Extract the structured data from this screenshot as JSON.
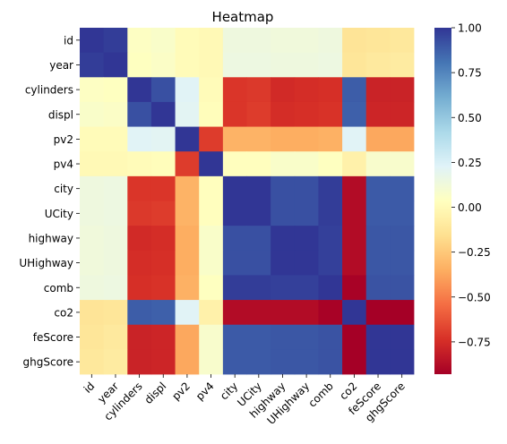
{
  "chart_data": {
    "type": "heatmap",
    "title": "Heatmap",
    "xlabel": "",
    "ylabel": "",
    "x_labels": [
      "id",
      "year",
      "cylinders",
      "displ",
      "pv2",
      "pv4",
      "city",
      "UCity",
      "highway",
      "UHighway",
      "comb",
      "co2",
      "feScore",
      "ghgScore"
    ],
    "y_labels": [
      "id",
      "year",
      "cylinders",
      "displ",
      "pv2",
      "pv4",
      "city",
      "UCity",
      "highway",
      "UHighway",
      "comb",
      "co2",
      "feScore",
      "ghgScore"
    ],
    "values": [
      [
        1.0,
        0.98,
        0.05,
        0.07,
        0.01,
        0.0,
        0.14,
        0.14,
        0.13,
        0.13,
        0.14,
        -0.13,
        -0.12,
        -0.11
      ],
      [
        0.98,
        1.0,
        0.04,
        0.06,
        0.01,
        0.0,
        0.15,
        0.15,
        0.14,
        0.14,
        0.15,
        -0.12,
        -0.1,
        -0.09
      ],
      [
        0.05,
        0.04,
        1.0,
        0.92,
        0.22,
        0.01,
        -0.72,
        -0.71,
        -0.76,
        -0.75,
        -0.74,
        0.88,
        -0.79,
        -0.79
      ],
      [
        0.07,
        0.06,
        0.92,
        1.0,
        0.21,
        0.02,
        -0.72,
        -0.7,
        -0.75,
        -0.74,
        -0.73,
        0.87,
        -0.78,
        -0.78
      ],
      [
        0.01,
        0.01,
        0.22,
        0.21,
        1.0,
        -0.7,
        -0.33,
        -0.33,
        -0.35,
        -0.35,
        -0.34,
        0.22,
        -0.37,
        -0.37
      ],
      [
        0.0,
        0.0,
        0.01,
        0.02,
        -0.7,
        1.0,
        0.03,
        0.03,
        0.07,
        0.07,
        0.04,
        -0.05,
        0.08,
        0.08
      ],
      [
        0.14,
        0.15,
        -0.72,
        -0.72,
        -0.33,
        0.03,
        1.0,
        1.0,
        0.92,
        0.92,
        0.98,
        -0.88,
        0.89,
        0.89
      ],
      [
        0.14,
        0.15,
        -0.71,
        -0.7,
        -0.33,
        0.03,
        1.0,
        1.0,
        0.92,
        0.92,
        0.98,
        -0.88,
        0.89,
        0.89
      ],
      [
        0.13,
        0.14,
        -0.76,
        -0.75,
        -0.35,
        0.07,
        0.92,
        0.92,
        1.0,
        1.0,
        0.97,
        -0.88,
        0.9,
        0.9
      ],
      [
        0.13,
        0.14,
        -0.75,
        -0.74,
        -0.35,
        0.07,
        0.92,
        0.92,
        1.0,
        1.0,
        0.97,
        -0.88,
        0.9,
        0.9
      ],
      [
        0.14,
        0.15,
        -0.74,
        -0.73,
        -0.34,
        0.04,
        0.98,
        0.98,
        0.97,
        0.97,
        1.0,
        -0.92,
        0.91,
        0.91
      ],
      [
        -0.13,
        -0.12,
        0.88,
        0.87,
        0.22,
        -0.05,
        -0.88,
        -0.88,
        -0.88,
        -0.88,
        -0.92,
        1.0,
        -0.93,
        -0.93
      ],
      [
        -0.12,
        -0.1,
        -0.79,
        -0.78,
        -0.37,
        0.08,
        0.89,
        0.89,
        0.9,
        0.9,
        0.91,
        -0.93,
        1.0,
        1.0
      ],
      [
        -0.11,
        -0.09,
        -0.79,
        -0.78,
        -0.37,
        0.08,
        0.89,
        0.89,
        0.9,
        0.9,
        0.91,
        -0.93,
        1.0,
        1.0
      ]
    ],
    "vmin": -0.93,
    "vmax": 1.0,
    "colormap": "RdYlBu",
    "colorbar_ticks": [
      1.0,
      0.75,
      0.5,
      0.25,
      0.0,
      -0.25,
      -0.5,
      -0.75
    ],
    "colorbar_tick_labels": [
      "1.00",
      "0.75",
      "0.50",
      "0.25",
      "0.00",
      "−0.25",
      "−0.50",
      "−0.75"
    ],
    "grid": false
  }
}
